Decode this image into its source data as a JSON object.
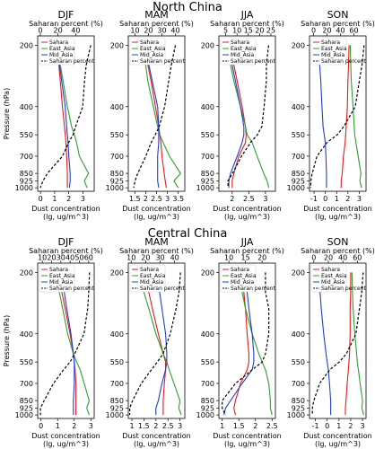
{
  "figure": {
    "rows": [
      {
        "title": "North China"
      },
      {
        "title": "Central China"
      }
    ]
  },
  "chart_data": [
    {
      "type": "line",
      "region": "North China",
      "season": "DJF",
      "title": "DJF",
      "xlabel": "Dust concentration (lg, ug/m^3)",
      "x2label": "Saharan percent (%)",
      "ylabel": "Pressure (hPa)",
      "yscale": "log-inverted",
      "ylim": [
        1040,
        180
      ],
      "yticks": [
        200,
        400,
        550,
        700,
        850,
        925,
        1000
      ],
      "xlim": [
        -0.2,
        3.8
      ],
      "xticks": [
        0,
        1,
        2,
        3
      ],
      "x2lim": [
        -3,
        61
      ],
      "x2ticks": [
        0,
        20,
        40
      ],
      "pressure": [
        200,
        250,
        300,
        400,
        500,
        550,
        600,
        700,
        850,
        925,
        1000
      ],
      "series": [
        {
          "name": "Sahara",
          "color": "#e41a1c",
          "axis": "bottom",
          "values": [
            1.2,
            1.3,
            1.4,
            1.55,
            1.7,
            1.75,
            1.8,
            1.85,
            1.9,
            1.9,
            1.9
          ]
        },
        {
          "name": "East_Asia",
          "color": "#2ca02c",
          "axis": "bottom",
          "values": [
            1.2,
            1.4,
            1.6,
            1.9,
            2.2,
            2.4,
            2.55,
            2.75,
            3.4,
            3.1,
            3.3
          ]
        },
        {
          "name": "Mid_Asia",
          "color": "#1f3fd0",
          "axis": "bottom",
          "values": [
            1.25,
            1.35,
            1.5,
            1.75,
            1.85,
            1.9,
            1.95,
            2.0,
            2.1,
            2.1,
            2.05
          ]
        },
        {
          "name": "Saharan percent",
          "color": "#000000",
          "dash": true,
          "axis": "top",
          "values": [
            57,
            52,
            50,
            48,
            40,
            37,
            32,
            25,
            8,
            3,
            0
          ]
        }
      ],
      "legend_loc": "upper left"
    },
    {
      "type": "line",
      "region": "North China",
      "season": "MAM",
      "title": "MAM",
      "xlabel": "Dust concentration (lg, ug/m^3)",
      "x2label": "Saharan percent (%)",
      "ylabel": "",
      "yscale": "log-inverted",
      "ylim": [
        1040,
        180
      ],
      "yticks": [
        200,
        400,
        550,
        700,
        850,
        925,
        1000
      ],
      "xlim": [
        1.2,
        3.8
      ],
      "xticks": [
        1.5,
        2.0,
        2.5,
        3.0,
        3.5
      ],
      "x2lim": [
        5,
        47
      ],
      "x2ticks": [
        10,
        20,
        30,
        40
      ],
      "pressure": [
        200,
        250,
        300,
        400,
        500,
        550,
        600,
        700,
        850,
        925,
        1000
      ],
      "series": [
        {
          "name": "Sahara",
          "color": "#e41a1c",
          "axis": "bottom",
          "values": [
            2.0,
            2.1,
            2.25,
            2.45,
            2.6,
            2.65,
            2.7,
            2.75,
            2.85,
            2.9,
            2.95
          ]
        },
        {
          "name": "East_Asia",
          "color": "#2ca02c",
          "axis": "bottom",
          "values": [
            1.9,
            2.0,
            2.1,
            2.35,
            2.55,
            2.65,
            2.8,
            3.1,
            3.6,
            3.3,
            3.5
          ]
        },
        {
          "name": "Mid_Asia",
          "color": "#1f3fd0",
          "axis": "bottom",
          "values": [
            2.0,
            2.15,
            2.3,
            2.55,
            2.6,
            2.6,
            2.6,
            2.55,
            2.55,
            2.55,
            2.6
          ]
        },
        {
          "name": "Saharan percent",
          "color": "#000000",
          "dash": true,
          "axis": "top",
          "values": [
            40,
            37,
            35,
            32,
            28,
            25,
            22,
            18,
            12,
            10,
            9
          ]
        }
      ],
      "legend_loc": "upper left"
    },
    {
      "type": "line",
      "region": "North China",
      "season": "JJA",
      "title": "JJA",
      "xlabel": "Dust concentration (lg, ug/m^3)",
      "x2label": "Saharan percent (%)",
      "ylabel": "",
      "yscale": "log-inverted",
      "ylim": [
        1040,
        180
      ],
      "yticks": [
        200,
        400,
        550,
        700,
        850,
        925,
        1000
      ],
      "xlim": [
        1.6,
        3.3
      ],
      "xticks": [
        2.0,
        2.5,
        3.0
      ],
      "x2lim": [
        2,
        27
      ],
      "x2ticks": [
        5,
        10,
        15,
        20,
        25
      ],
      "pressure": [
        200,
        250,
        300,
        400,
        500,
        550,
        600,
        700,
        850,
        925,
        1000
      ],
      "series": [
        {
          "name": "Sahara",
          "color": "#e41a1c",
          "axis": "bottom",
          "values": [
            1.95,
            2.05,
            2.15,
            2.3,
            2.4,
            2.42,
            2.4,
            2.2,
            2.05,
            2.0,
            2.0
          ]
        },
        {
          "name": "East_Asia",
          "color": "#2ca02c",
          "axis": "bottom",
          "values": [
            1.85,
            1.95,
            2.05,
            2.25,
            2.4,
            2.45,
            2.6,
            2.75,
            2.95,
            3.05,
            3.1
          ]
        },
        {
          "name": "Mid_Asia",
          "color": "#1f3fd0",
          "axis": "bottom",
          "values": [
            1.9,
            2.0,
            2.1,
            2.25,
            2.35,
            2.35,
            2.3,
            2.15,
            1.95,
            1.9,
            1.9
          ]
        },
        {
          "name": "Saharan percent",
          "color": "#000000",
          "dash": true,
          "axis": "top",
          "values": [
            24,
            23,
            23,
            22,
            21,
            19,
            16,
            12,
            8,
            6,
            6
          ]
        }
      ],
      "legend_loc": "upper left"
    },
    {
      "type": "line",
      "region": "North China",
      "season": "SON",
      "title": "SON",
      "xlabel": "Dust concentration (lg, ug/m^3)",
      "x2label": "Saharan percent (%)",
      "ylabel": "",
      "yscale": "log-inverted",
      "ylim": [
        1040,
        180
      ],
      "yticks": [
        200,
        400,
        550,
        700,
        850,
        925,
        1000
      ],
      "xlim": [
        -1.4,
        3.6
      ],
      "xticks": [
        -1,
        0,
        1,
        2,
        3
      ],
      "x2lim": [
        -6,
        78
      ],
      "x2ticks": [
        0,
        20,
        40,
        60
      ],
      "pressure": [
        200,
        250,
        300,
        400,
        500,
        550,
        600,
        700,
        850,
        925,
        1000
      ],
      "series": [
        {
          "name": "Sahara",
          "color": "#e41a1c",
          "axis": "bottom",
          "values": [
            2.1,
            2.05,
            2.0,
            1.95,
            1.85,
            1.8,
            1.75,
            1.6,
            1.5,
            1.4,
            1.4
          ]
        },
        {
          "name": "East_Asia",
          "color": "#2ca02c",
          "axis": "bottom",
          "values": [
            2.2,
            2.25,
            2.3,
            2.45,
            2.55,
            2.6,
            2.7,
            2.9,
            3.15,
            3.05,
            3.2
          ]
        },
        {
          "name": "Mid_Asia",
          "color": "#1f3fd0",
          "axis": "bottom",
          "values": [
            -0.6,
            -0.5,
            -0.4,
            -0.3,
            -0.2,
            -0.1,
            0.0,
            0.05,
            0.1,
            0.1,
            0.1
          ]
        },
        {
          "name": "Saharan percent",
          "color": "#000000",
          "dash": true,
          "axis": "top",
          "values": [
            75,
            72,
            68,
            62,
            45,
            35,
            20,
            5,
            -2,
            -4,
            -4
          ]
        }
      ],
      "legend_loc": "upper left"
    },
    {
      "type": "line",
      "region": "Central China",
      "season": "DJF",
      "title": "DJF",
      "xlabel": "Dust concentration (lg, ug/m^3)",
      "x2label": "Saharan percent (%)",
      "ylabel": "Pressure (hPa)",
      "yscale": "log-inverted",
      "ylim": [
        1040,
        180
      ],
      "yticks": [
        200,
        400,
        550,
        700,
        850,
        925,
        1000
      ],
      "xlim": [
        -0.2,
        3.2
      ],
      "xticks": [
        0,
        1,
        2,
        3
      ],
      "x2lim": [
        5,
        66
      ],
      "x2ticks": [
        10,
        20,
        30,
        40,
        50,
        60
      ],
      "pressure": [
        200,
        250,
        300,
        400,
        500,
        550,
        600,
        700,
        850,
        925,
        1000
      ],
      "series": [
        {
          "name": "Sahara",
          "color": "#e41a1c",
          "axis": "bottom",
          "values": [
            1.0,
            1.25,
            1.45,
            1.75,
            1.95,
            2.0,
            2.05,
            2.1,
            2.1,
            2.1,
            2.1
          ]
        },
        {
          "name": "East_Asia",
          "color": "#2ca02c",
          "axis": "bottom",
          "values": [
            0.9,
            1.1,
            1.3,
            1.6,
            1.95,
            2.15,
            2.35,
            2.6,
            2.9,
            2.75,
            2.9
          ]
        },
        {
          "name": "Mid_Asia",
          "color": "#1f3fd0",
          "axis": "bottom",
          "values": [
            1.2,
            1.4,
            1.55,
            1.8,
            1.95,
            2.0,
            2.0,
            2.0,
            1.95,
            1.95,
            1.95
          ]
        },
        {
          "name": "Saharan percent",
          "color": "#000000",
          "dash": true,
          "axis": "top",
          "values": [
            61,
            60,
            59,
            55,
            45,
            40,
            33,
            22,
            12,
            8,
            8
          ]
        }
      ],
      "legend_loc": "upper left"
    },
    {
      "type": "line",
      "region": "Central China",
      "season": "MAM",
      "title": "MAM",
      "xlabel": "Dust concentration (lg, ug/m^3)",
      "x2label": "Saharan percent (%)",
      "ylabel": "",
      "yscale": "log-inverted",
      "ylim": [
        1040,
        180
      ],
      "yticks": [
        200,
        400,
        550,
        700,
        850,
        925,
        1000
      ],
      "xlim": [
        0.85,
        3.2
      ],
      "xticks": [
        1.0,
        1.5,
        2.0,
        2.5,
        3.0
      ],
      "x2lim": [
        8,
        47
      ],
      "x2ticks": [
        10,
        20,
        30,
        40
      ],
      "pressure": [
        200,
        250,
        300,
        400,
        500,
        550,
        600,
        700,
        850,
        925,
        1000
      ],
      "series": [
        {
          "name": "Sahara",
          "color": "#e41a1c",
          "axis": "bottom",
          "values": [
            1.5,
            1.7,
            1.85,
            2.1,
            2.3,
            2.4,
            2.4,
            2.35,
            2.3,
            2.3,
            2.3
          ]
        },
        {
          "name": "East_Asia",
          "color": "#2ca02c",
          "axis": "bottom",
          "values": [
            1.3,
            1.5,
            1.7,
            2.0,
            2.3,
            2.45,
            2.55,
            2.75,
            3.0,
            2.95,
            3.05
          ]
        },
        {
          "name": "Mid_Asia",
          "color": "#1f3fd0",
          "axis": "bottom",
          "values": [
            2.05,
            2.15,
            2.25,
            2.4,
            2.45,
            2.45,
            2.4,
            2.25,
            2.1,
            2.0,
            2.0
          ]
        },
        {
          "name": "Saharan percent",
          "color": "#000000",
          "dash": true,
          "axis": "top",
          "values": [
            44,
            43,
            41,
            37,
            32,
            28,
            24,
            17,
            11,
            9,
            9
          ]
        }
      ],
      "legend_loc": "upper left"
    },
    {
      "type": "line",
      "region": "Central China",
      "season": "JJA",
      "title": "JJA",
      "xlabel": "Dust concentration (lg, ug/m^3)",
      "x2label": "Saharan percent (%)",
      "ylabel": "",
      "yscale": "log-inverted",
      "ylim": [
        1040,
        180
      ],
      "yticks": [
        200,
        400,
        550,
        700,
        850,
        925,
        1000
      ],
      "xlim": [
        0.9,
        2.6
      ],
      "xticks": [
        1.0,
        1.5,
        2.0,
        2.5
      ],
      "x2lim": [
        7,
        24
      ],
      "x2ticks": [
        10,
        15,
        20
      ],
      "pressure": [
        200,
        250,
        300,
        400,
        500,
        550,
        600,
        700,
        850,
        925,
        1000
      ],
      "series": [
        {
          "name": "Sahara",
          "color": "#e41a1c",
          "axis": "bottom",
          "values": [
            1.6,
            1.65,
            1.7,
            1.75,
            1.8,
            1.8,
            1.75,
            1.55,
            1.4,
            1.35,
            1.4
          ]
        },
        {
          "name": "East_Asia",
          "color": "#2ca02c",
          "axis": "bottom",
          "values": [
            1.5,
            1.6,
            1.7,
            1.9,
            2.1,
            2.2,
            2.3,
            2.4,
            2.45,
            2.45,
            2.5
          ]
        },
        {
          "name": "Mid_Asia",
          "color": "#1f3fd0",
          "axis": "bottom",
          "values": [
            1.7,
            1.75,
            1.8,
            1.9,
            1.95,
            1.95,
            1.9,
            1.6,
            1.25,
            1.1,
            1.05
          ]
        },
        {
          "name": "Saharan percent",
          "color": "#000000",
          "dash": true,
          "axis": "top",
          "values": [
            21,
            21,
            22,
            22,
            21,
            20,
            17,
            12,
            8,
            8,
            9
          ]
        }
      ],
      "legend_loc": "upper left"
    },
    {
      "type": "line",
      "region": "Central China",
      "season": "SON",
      "title": "SON",
      "xlabel": "Dust concentration (lg, ug/m^3)",
      "x2label": "Saharan percent (%)",
      "ylabel": "",
      "yscale": "log-inverted",
      "ylim": [
        1040,
        180
      ],
      "yticks": [
        200,
        400,
        550,
        700,
        850,
        925,
        1000
      ],
      "xlim": [
        -1.5,
        3.3
      ],
      "xticks": [
        -1,
        0,
        1,
        2,
        3
      ],
      "x2lim": [
        -6,
        72
      ],
      "x2ticks": [
        0,
        20,
        40,
        60
      ],
      "pressure": [
        200,
        250,
        300,
        400,
        500,
        550,
        600,
        700,
        850,
        925,
        1000
      ],
      "series": [
        {
          "name": "Sahara",
          "color": "#e41a1c",
          "axis": "bottom",
          "values": [
            2.0,
            2.0,
            1.95,
            1.95,
            1.9,
            1.85,
            1.8,
            1.7,
            1.6,
            1.55,
            1.55
          ]
        },
        {
          "name": "East_Asia",
          "color": "#2ca02c",
          "axis": "bottom",
          "values": [
            2.1,
            2.15,
            2.2,
            2.35,
            2.5,
            2.55,
            2.65,
            2.8,
            3.0,
            2.95,
            3.1
          ]
        },
        {
          "name": "Mid_Asia",
          "color": "#1f3fd0",
          "axis": "bottom",
          "values": [
            -0.8,
            -0.6,
            -0.5,
            -0.3,
            -0.1,
            0.0,
            0.1,
            0.2,
            0.3,
            0.3,
            0.3
          ]
        },
        {
          "name": "Saharan percent",
          "color": "#000000",
          "dash": true,
          "axis": "top",
          "values": [
            68,
            66,
            63,
            58,
            45,
            35,
            22,
            8,
            0,
            -2,
            -2
          ]
        }
      ],
      "legend_loc": "upper left"
    }
  ]
}
